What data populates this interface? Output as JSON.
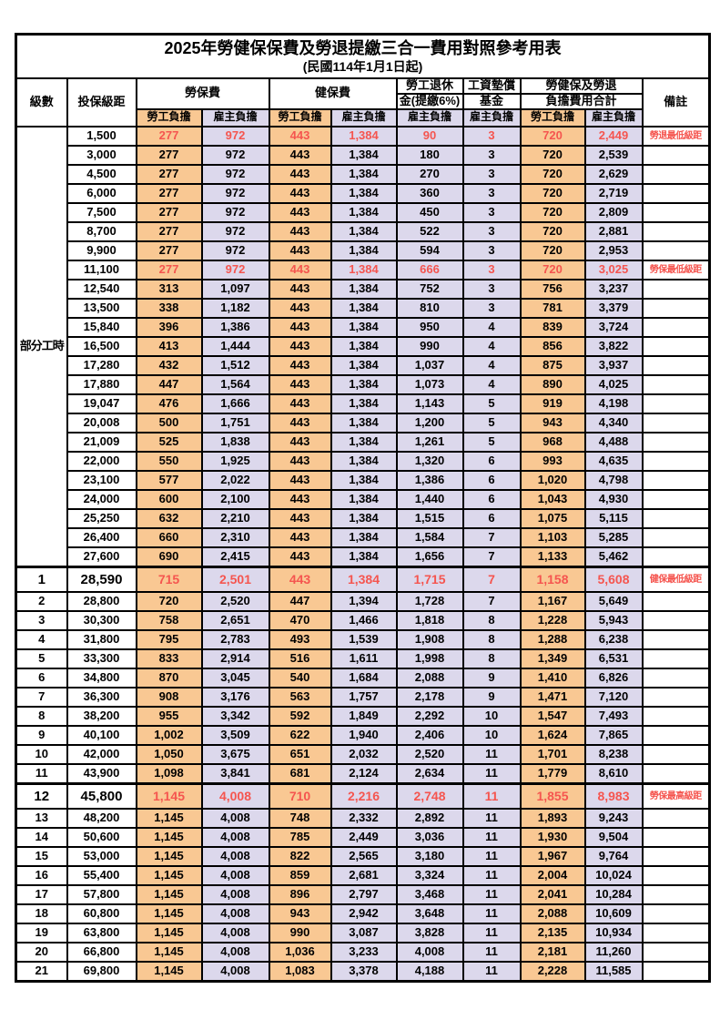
{
  "title": "2025年勞健保保費及勞退提繳三合一費用對照參考用表",
  "subtitle": "(民國114年1月1日起)",
  "colors": {
    "employee_burden_bg": "#F9C893",
    "employer_burden_bg": "#DCD8EC",
    "highlight_red": "#F5554F",
    "grid": "#000000",
    "paper": "#FFFFFF"
  },
  "columns": {
    "level": "級數",
    "salary": "投保級距",
    "labor": "勞保費",
    "health": "健保費",
    "pension_top": "勞工退休",
    "pension_bottom": "金(提繳6%)",
    "fund_top": "工資墊償",
    "fund_bottom": "基金",
    "total_top": "勞健保及勞退",
    "total_bottom": "負擔費用合計",
    "note": "備註",
    "employee": "勞工負擔",
    "employer": "雇主負擔"
  },
  "group": {
    "label": "部分工時",
    "span": 23
  },
  "rows": [
    {
      "level": "",
      "salary": "1,500",
      "v": [
        "277",
        "972",
        "443",
        "1,384",
        "90",
        "3",
        "720",
        "2,449"
      ],
      "note": "勞退最低級距",
      "em": true
    },
    {
      "level": "",
      "salary": "3,000",
      "v": [
        "277",
        "972",
        "443",
        "1,384",
        "180",
        "3",
        "720",
        "2,539"
      ],
      "note": ""
    },
    {
      "level": "",
      "salary": "4,500",
      "v": [
        "277",
        "972",
        "443",
        "1,384",
        "270",
        "3",
        "720",
        "2,629"
      ],
      "note": ""
    },
    {
      "level": "",
      "salary": "6,000",
      "v": [
        "277",
        "972",
        "443",
        "1,384",
        "360",
        "3",
        "720",
        "2,719"
      ],
      "note": ""
    },
    {
      "level": "",
      "salary": "7,500",
      "v": [
        "277",
        "972",
        "443",
        "1,384",
        "450",
        "3",
        "720",
        "2,809"
      ],
      "note": ""
    },
    {
      "level": "",
      "salary": "8,700",
      "v": [
        "277",
        "972",
        "443",
        "1,384",
        "522",
        "3",
        "720",
        "2,881"
      ],
      "note": ""
    },
    {
      "level": "",
      "salary": "9,900",
      "v": [
        "277",
        "972",
        "443",
        "1,384",
        "594",
        "3",
        "720",
        "2,953"
      ],
      "note": ""
    },
    {
      "level": "",
      "salary": "11,100",
      "v": [
        "277",
        "972",
        "443",
        "1,384",
        "666",
        "3",
        "720",
        "3,025"
      ],
      "note": "勞保最低級距",
      "em": true
    },
    {
      "level": "",
      "salary": "12,540",
      "v": [
        "313",
        "1,097",
        "443",
        "1,384",
        "752",
        "3",
        "756",
        "3,237"
      ],
      "note": ""
    },
    {
      "level": "",
      "salary": "13,500",
      "v": [
        "338",
        "1,182",
        "443",
        "1,384",
        "810",
        "3",
        "781",
        "3,379"
      ],
      "note": ""
    },
    {
      "level": "",
      "salary": "15,840",
      "v": [
        "396",
        "1,386",
        "443",
        "1,384",
        "950",
        "4",
        "839",
        "3,724"
      ],
      "note": ""
    },
    {
      "level": "",
      "salary": "16,500",
      "v": [
        "413",
        "1,444",
        "443",
        "1,384",
        "990",
        "4",
        "856",
        "3,822"
      ],
      "note": ""
    },
    {
      "level": "",
      "salary": "17,280",
      "v": [
        "432",
        "1,512",
        "443",
        "1,384",
        "1,037",
        "4",
        "875",
        "3,937"
      ],
      "note": ""
    },
    {
      "level": "",
      "salary": "17,880",
      "v": [
        "447",
        "1,564",
        "443",
        "1,384",
        "1,073",
        "4",
        "890",
        "4,025"
      ],
      "note": ""
    },
    {
      "level": "",
      "salary": "19,047",
      "v": [
        "476",
        "1,666",
        "443",
        "1,384",
        "1,143",
        "5",
        "919",
        "4,198"
      ],
      "note": ""
    },
    {
      "level": "",
      "salary": "20,008",
      "v": [
        "500",
        "1,751",
        "443",
        "1,384",
        "1,200",
        "5",
        "943",
        "4,340"
      ],
      "note": ""
    },
    {
      "level": "",
      "salary": "21,009",
      "v": [
        "525",
        "1,838",
        "443",
        "1,384",
        "1,261",
        "5",
        "968",
        "4,488"
      ],
      "note": ""
    },
    {
      "level": "",
      "salary": "22,000",
      "v": [
        "550",
        "1,925",
        "443",
        "1,384",
        "1,320",
        "6",
        "993",
        "4,635"
      ],
      "note": ""
    },
    {
      "level": "",
      "salary": "23,100",
      "v": [
        "577",
        "2,022",
        "443",
        "1,384",
        "1,386",
        "6",
        "1,020",
        "4,798"
      ],
      "note": ""
    },
    {
      "level": "",
      "salary": "24,000",
      "v": [
        "600",
        "2,100",
        "443",
        "1,384",
        "1,440",
        "6",
        "1,043",
        "4,930"
      ],
      "note": ""
    },
    {
      "level": "",
      "salary": "25,250",
      "v": [
        "632",
        "2,210",
        "443",
        "1,384",
        "1,515",
        "6",
        "1,075",
        "5,115"
      ],
      "note": ""
    },
    {
      "level": "",
      "salary": "26,400",
      "v": [
        "660",
        "2,310",
        "443",
        "1,384",
        "1,584",
        "7",
        "1,103",
        "5,285"
      ],
      "note": ""
    },
    {
      "level": "",
      "salary": "27,600",
      "v": [
        "690",
        "2,415",
        "443",
        "1,384",
        "1,656",
        "7",
        "1,133",
        "5,462"
      ],
      "note": ""
    },
    {
      "level": "1",
      "salary": "28,590",
      "v": [
        "715",
        "2,501",
        "443",
        "1,384",
        "1,715",
        "7",
        "1,158",
        "5,608"
      ],
      "note": "健保最低級距",
      "em": true,
      "big": true
    },
    {
      "level": "2",
      "salary": "28,800",
      "v": [
        "720",
        "2,520",
        "447",
        "1,394",
        "1,728",
        "7",
        "1,167",
        "5,649"
      ],
      "note": ""
    },
    {
      "level": "3",
      "salary": "30,300",
      "v": [
        "758",
        "2,651",
        "470",
        "1,466",
        "1,818",
        "8",
        "1,228",
        "5,943"
      ],
      "note": ""
    },
    {
      "level": "4",
      "salary": "31,800",
      "v": [
        "795",
        "2,783",
        "493",
        "1,539",
        "1,908",
        "8",
        "1,288",
        "6,238"
      ],
      "note": ""
    },
    {
      "level": "5",
      "salary": "33,300",
      "v": [
        "833",
        "2,914",
        "516",
        "1,611",
        "1,998",
        "8",
        "1,349",
        "6,531"
      ],
      "note": ""
    },
    {
      "level": "6",
      "salary": "34,800",
      "v": [
        "870",
        "3,045",
        "540",
        "1,684",
        "2,088",
        "9",
        "1,410",
        "6,826"
      ],
      "note": ""
    },
    {
      "level": "7",
      "salary": "36,300",
      "v": [
        "908",
        "3,176",
        "563",
        "1,757",
        "2,178",
        "9",
        "1,471",
        "7,120"
      ],
      "note": ""
    },
    {
      "level": "8",
      "salary": "38,200",
      "v": [
        "955",
        "3,342",
        "592",
        "1,849",
        "2,292",
        "10",
        "1,547",
        "7,493"
      ],
      "note": ""
    },
    {
      "level": "9",
      "salary": "40,100",
      "v": [
        "1,002",
        "3,509",
        "622",
        "1,940",
        "2,406",
        "10",
        "1,624",
        "7,865"
      ],
      "note": ""
    },
    {
      "level": "10",
      "salary": "42,000",
      "v": [
        "1,050",
        "3,675",
        "651",
        "2,032",
        "2,520",
        "11",
        "1,701",
        "8,238"
      ],
      "note": ""
    },
    {
      "level": "11",
      "salary": "43,900",
      "v": [
        "1,098",
        "3,841",
        "681",
        "2,124",
        "2,634",
        "11",
        "1,779",
        "8,610"
      ],
      "note": ""
    },
    {
      "level": "12",
      "salary": "45,800",
      "v": [
        "1,145",
        "4,008",
        "710",
        "2,216",
        "2,748",
        "11",
        "1,855",
        "8,983"
      ],
      "note": "勞保最高級距",
      "em": true,
      "big": true
    },
    {
      "level": "13",
      "salary": "48,200",
      "v": [
        "1,145",
        "4,008",
        "748",
        "2,332",
        "2,892",
        "11",
        "1,893",
        "9,243"
      ],
      "note": ""
    },
    {
      "level": "14",
      "salary": "50,600",
      "v": [
        "1,145",
        "4,008",
        "785",
        "2,449",
        "3,036",
        "11",
        "1,930",
        "9,504"
      ],
      "note": ""
    },
    {
      "level": "15",
      "salary": "53,000",
      "v": [
        "1,145",
        "4,008",
        "822",
        "2,565",
        "3,180",
        "11",
        "1,967",
        "9,764"
      ],
      "note": ""
    },
    {
      "level": "16",
      "salary": "55,400",
      "v": [
        "1,145",
        "4,008",
        "859",
        "2,681",
        "3,324",
        "11",
        "2,004",
        "10,024"
      ],
      "note": ""
    },
    {
      "level": "17",
      "salary": "57,800",
      "v": [
        "1,145",
        "4,008",
        "896",
        "2,797",
        "3,468",
        "11",
        "2,041",
        "10,284"
      ],
      "note": ""
    },
    {
      "level": "18",
      "salary": "60,800",
      "v": [
        "1,145",
        "4,008",
        "943",
        "2,942",
        "3,648",
        "11",
        "2,088",
        "10,609"
      ],
      "note": ""
    },
    {
      "level": "19",
      "salary": "63,800",
      "v": [
        "1,145",
        "4,008",
        "990",
        "3,087",
        "3,828",
        "11",
        "2,135",
        "10,934"
      ],
      "note": ""
    },
    {
      "level": "20",
      "salary": "66,800",
      "v": [
        "1,145",
        "4,008",
        "1,036",
        "3,233",
        "4,008",
        "11",
        "2,181",
        "11,260"
      ],
      "note": ""
    },
    {
      "level": "21",
      "salary": "69,800",
      "v": [
        "1,145",
        "4,008",
        "1,083",
        "3,378",
        "4,188",
        "11",
        "2,228",
        "11,585"
      ],
      "note": ""
    }
  ]
}
